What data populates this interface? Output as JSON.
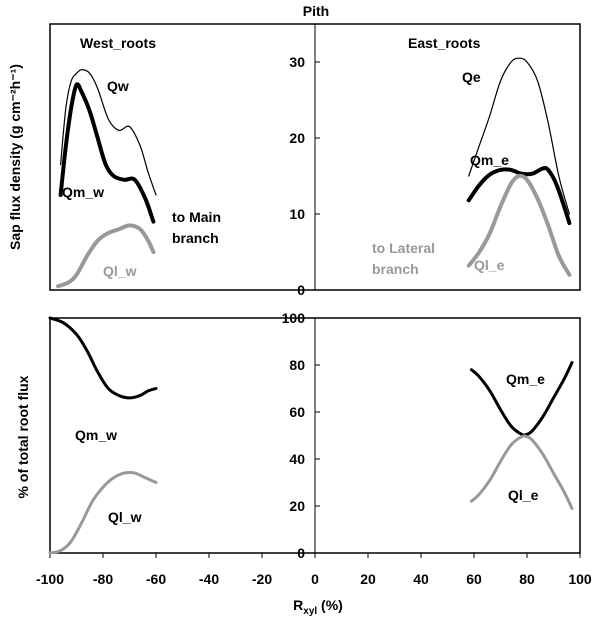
{
  "chart_data": [
    {
      "type": "line",
      "title": "Pith",
      "ylabel": "Sap flux density (g cm⁻²h⁻¹)",
      "xlim": [
        -100,
        100
      ],
      "ylim": [
        0,
        35
      ],
      "yticks": [
        0,
        10,
        20,
        30
      ],
      "grid": false,
      "annotations": [
        "West_roots",
        "East_roots",
        "to Main branch",
        "to Lateral branch"
      ],
      "colors": {
        "black": "#000000",
        "gray": "#999999"
      },
      "series": [
        {
          "name": "Qw",
          "side": "west",
          "color": "#000000",
          "weight": "thin",
          "x": [
            -96,
            -94,
            -92,
            -90,
            -88,
            -85,
            -82,
            -78,
            -74,
            -70,
            -66,
            -63,
            -60
          ],
          "y": [
            16.5,
            24,
            27.5,
            28.5,
            29,
            28.5,
            26.5,
            22.5,
            21,
            21.5,
            19,
            15.5,
            12.5
          ]
        },
        {
          "name": "Qm_w",
          "side": "west",
          "color": "#000000",
          "weight": "thick",
          "x": [
            -96,
            -94,
            -92,
            -90,
            -88,
            -85,
            -82,
            -79,
            -76,
            -72,
            -68,
            -64,
            -61
          ],
          "y": [
            12.5,
            19,
            24,
            27,
            26,
            23.5,
            20,
            16.5,
            15,
            14.5,
            14.5,
            12,
            9
          ]
        },
        {
          "name": "Ql_w",
          "side": "west",
          "color": "#999999",
          "weight": "thick",
          "x": [
            -97,
            -93,
            -90,
            -86,
            -82,
            -78,
            -74,
            -70,
            -66,
            -63,
            -61
          ],
          "y": [
            0.5,
            1,
            2,
            4.5,
            6.5,
            7.5,
            8,
            8.5,
            8,
            6.5,
            5
          ]
        },
        {
          "name": "Qe",
          "side": "east",
          "color": "#000000",
          "weight": "thin",
          "x": [
            58,
            62,
            66,
            70,
            74,
            77,
            80,
            84,
            88,
            92,
            96
          ],
          "y": [
            15,
            19,
            23,
            27.5,
            30,
            30.5,
            30,
            27.5,
            22,
            15,
            10
          ]
        },
        {
          "name": "Qm_e",
          "side": "east",
          "color": "#000000",
          "weight": "thick",
          "x": [
            58,
            62,
            66,
            70,
            74,
            78,
            82,
            86,
            88,
            91,
            94,
            96
          ],
          "y": [
            11.8,
            13.8,
            15.2,
            15.8,
            15.8,
            15.3,
            15.3,
            16,
            15.8,
            14,
            11,
            8.8
          ]
        },
        {
          "name": "Ql_e",
          "side": "east",
          "color": "#999999",
          "weight": "thick",
          "x": [
            58,
            62,
            66,
            70,
            74,
            77,
            80,
            84,
            88,
            92,
            96
          ],
          "y": [
            3.2,
            5,
            7.5,
            11,
            14,
            15,
            14.5,
            12,
            8.5,
            4.5,
            2
          ]
        }
      ]
    },
    {
      "type": "line",
      "xlabel": "R",
      "xlabel_sub": "xyl",
      "xlabel_unit": " (%)",
      "ylabel": "% of total root flux",
      "xlim": [
        -100,
        100
      ],
      "ylim": [
        0,
        100
      ],
      "xticks": [
        -100,
        -80,
        -60,
        -40,
        -20,
        0,
        20,
        40,
        60,
        80,
        100
      ],
      "yticks": [
        0,
        20,
        40,
        60,
        80,
        100
      ],
      "grid": false,
      "series": [
        {
          "name": "Qm_w",
          "side": "west",
          "color": "#000000",
          "x": [
            -100,
            -95,
            -90,
            -86,
            -82,
            -78,
            -74,
            -70,
            -66,
            -63,
            -60
          ],
          "y": [
            100,
            98,
            93,
            86,
            77,
            70,
            67,
            66,
            67,
            69,
            70
          ]
        },
        {
          "name": "Ql_w",
          "side": "west",
          "color": "#999999",
          "x": [
            -100,
            -96,
            -92,
            -88,
            -84,
            -80,
            -76,
            -72,
            -68,
            -64,
            -60
          ],
          "y": [
            0,
            1,
            5,
            13,
            22,
            28,
            32,
            34,
            34,
            32,
            30
          ]
        },
        {
          "name": "Qm_e",
          "side": "east",
          "color": "#000000",
          "x": [
            59,
            62,
            66,
            70,
            74,
            78,
            80,
            82,
            86,
            90,
            94,
            97
          ],
          "y": [
            78,
            75,
            69,
            61,
            54,
            50.5,
            50.5,
            52,
            58,
            66,
            74,
            81
          ]
        },
        {
          "name": "Ql_e",
          "side": "east",
          "color": "#999999",
          "x": [
            59,
            62,
            66,
            70,
            74,
            78,
            80,
            82,
            86,
            90,
            94,
            97
          ],
          "y": [
            22,
            25,
            31,
            39,
            46,
            49.5,
            49.5,
            48,
            42,
            34,
            26,
            19
          ]
        }
      ]
    }
  ]
}
